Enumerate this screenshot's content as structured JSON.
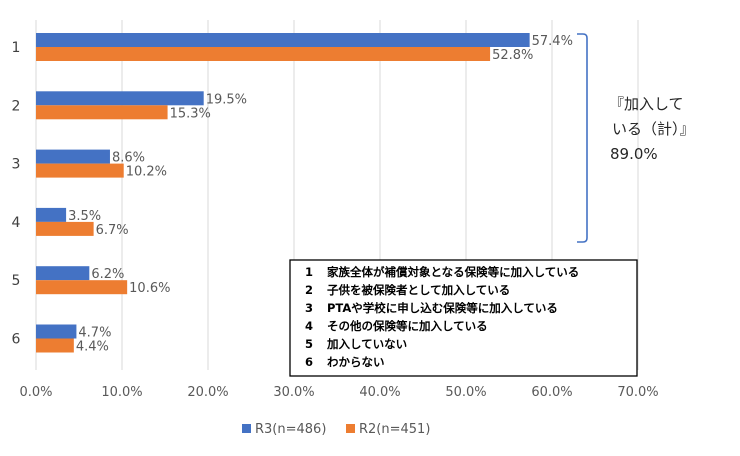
{
  "chart_data": {
    "type": "bar",
    "orientation": "horizontal",
    "categories": [
      "1",
      "2",
      "3",
      "4",
      "5",
      "6"
    ],
    "series": [
      {
        "name": "R3(n=486)",
        "color": "#4472c4",
        "values": [
          57.4,
          19.5,
          8.6,
          3.5,
          6.2,
          4.7
        ],
        "labels": [
          "57.4%",
          "19.5%",
          "8.6%",
          "3.5%",
          "6.2%",
          "4.7%"
        ]
      },
      {
        "name": "R2(n=451)",
        "color": "#ed7d31",
        "values": [
          52.8,
          15.3,
          10.2,
          6.7,
          10.6,
          4.4
        ],
        "labels": [
          "52.8%",
          "15.3%",
          "10.2%",
          "6.7%",
          "10.6%",
          "4.4%"
        ]
      }
    ],
    "xlim": [
      0,
      70
    ],
    "x_ticks": [
      "0.0%",
      "10.0%",
      "20.0%",
      "30.0%",
      "40.0%",
      "50.0%",
      "60.0%",
      "70.0%"
    ],
    "grid": true,
    "legend_position": "bottom",
    "annotation": {
      "lines": [
        "『加入して",
        "いる（計）』",
        "89.0%"
      ],
      "brace_color": "#4472c4"
    },
    "key_box": [
      {
        "num": "1",
        "text": "家族全体が補償対象となる保険等に加入している"
      },
      {
        "num": "2",
        "text": "子供を被保険者として加入している"
      },
      {
        "num": "3",
        "text": "PTAや学校に申し込む保険等に加入している"
      },
      {
        "num": "4",
        "text": "その他の保険等に加入している"
      },
      {
        "num": "5",
        "text": "加入していない"
      },
      {
        "num": "6",
        "text": "わからない"
      }
    ]
  }
}
